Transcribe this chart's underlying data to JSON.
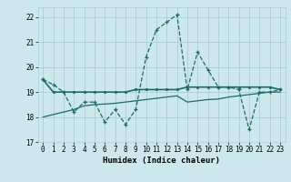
{
  "xlabel": "Humidex (Indice chaleur)",
  "xlim": [
    -0.5,
    23.5
  ],
  "ylim": [
    17,
    22.4
  ],
  "yticks": [
    17,
    18,
    19,
    20,
    21,
    22
  ],
  "xticks": [
    0,
    1,
    2,
    3,
    4,
    5,
    6,
    7,
    8,
    9,
    10,
    11,
    12,
    13,
    14,
    15,
    16,
    17,
    18,
    19,
    20,
    21,
    22,
    23
  ],
  "bg_color": "#cce8ec",
  "grid_color": "#aacdd4",
  "line_color": "#1a6b6b",
  "line1_x": [
    0,
    1,
    2,
    3,
    4,
    5,
    6,
    7,
    8,
    9,
    10,
    11,
    12,
    13,
    14,
    15,
    16,
    17,
    18,
    19,
    20,
    21,
    22,
    23
  ],
  "line1_y": [
    19.5,
    19.3,
    19.0,
    18.2,
    18.6,
    18.6,
    17.8,
    18.3,
    17.7,
    18.3,
    20.4,
    21.5,
    21.8,
    22.1,
    19.1,
    20.6,
    19.9,
    19.2,
    19.2,
    19.1,
    17.5,
    19.0,
    19.0,
    19.1
  ],
  "line2_x": [
    0,
    1,
    2,
    3,
    4,
    5,
    6,
    7,
    8,
    9,
    10,
    11,
    12,
    13,
    14,
    15,
    16,
    17,
    18,
    19,
    20,
    21,
    22,
    23
  ],
  "line2_y": [
    19.5,
    19.0,
    19.0,
    19.0,
    19.0,
    19.0,
    19.0,
    19.0,
    19.0,
    19.1,
    19.1,
    19.1,
    19.1,
    19.1,
    19.2,
    19.2,
    19.2,
    19.2,
    19.2,
    19.2,
    19.2,
    19.2,
    19.2,
    19.1
  ],
  "line3_x": [
    0,
    1,
    2,
    3,
    4,
    5,
    6,
    7,
    8,
    9,
    10,
    11,
    12,
    13,
    14,
    15,
    16,
    17,
    18,
    19,
    20,
    21,
    22,
    23
  ],
  "line3_y": [
    18.0,
    18.1,
    18.2,
    18.3,
    18.45,
    18.5,
    18.52,
    18.55,
    18.6,
    18.65,
    18.7,
    18.75,
    18.8,
    18.85,
    18.6,
    18.65,
    18.7,
    18.72,
    18.8,
    18.85,
    18.9,
    18.95,
    19.0,
    19.0
  ]
}
